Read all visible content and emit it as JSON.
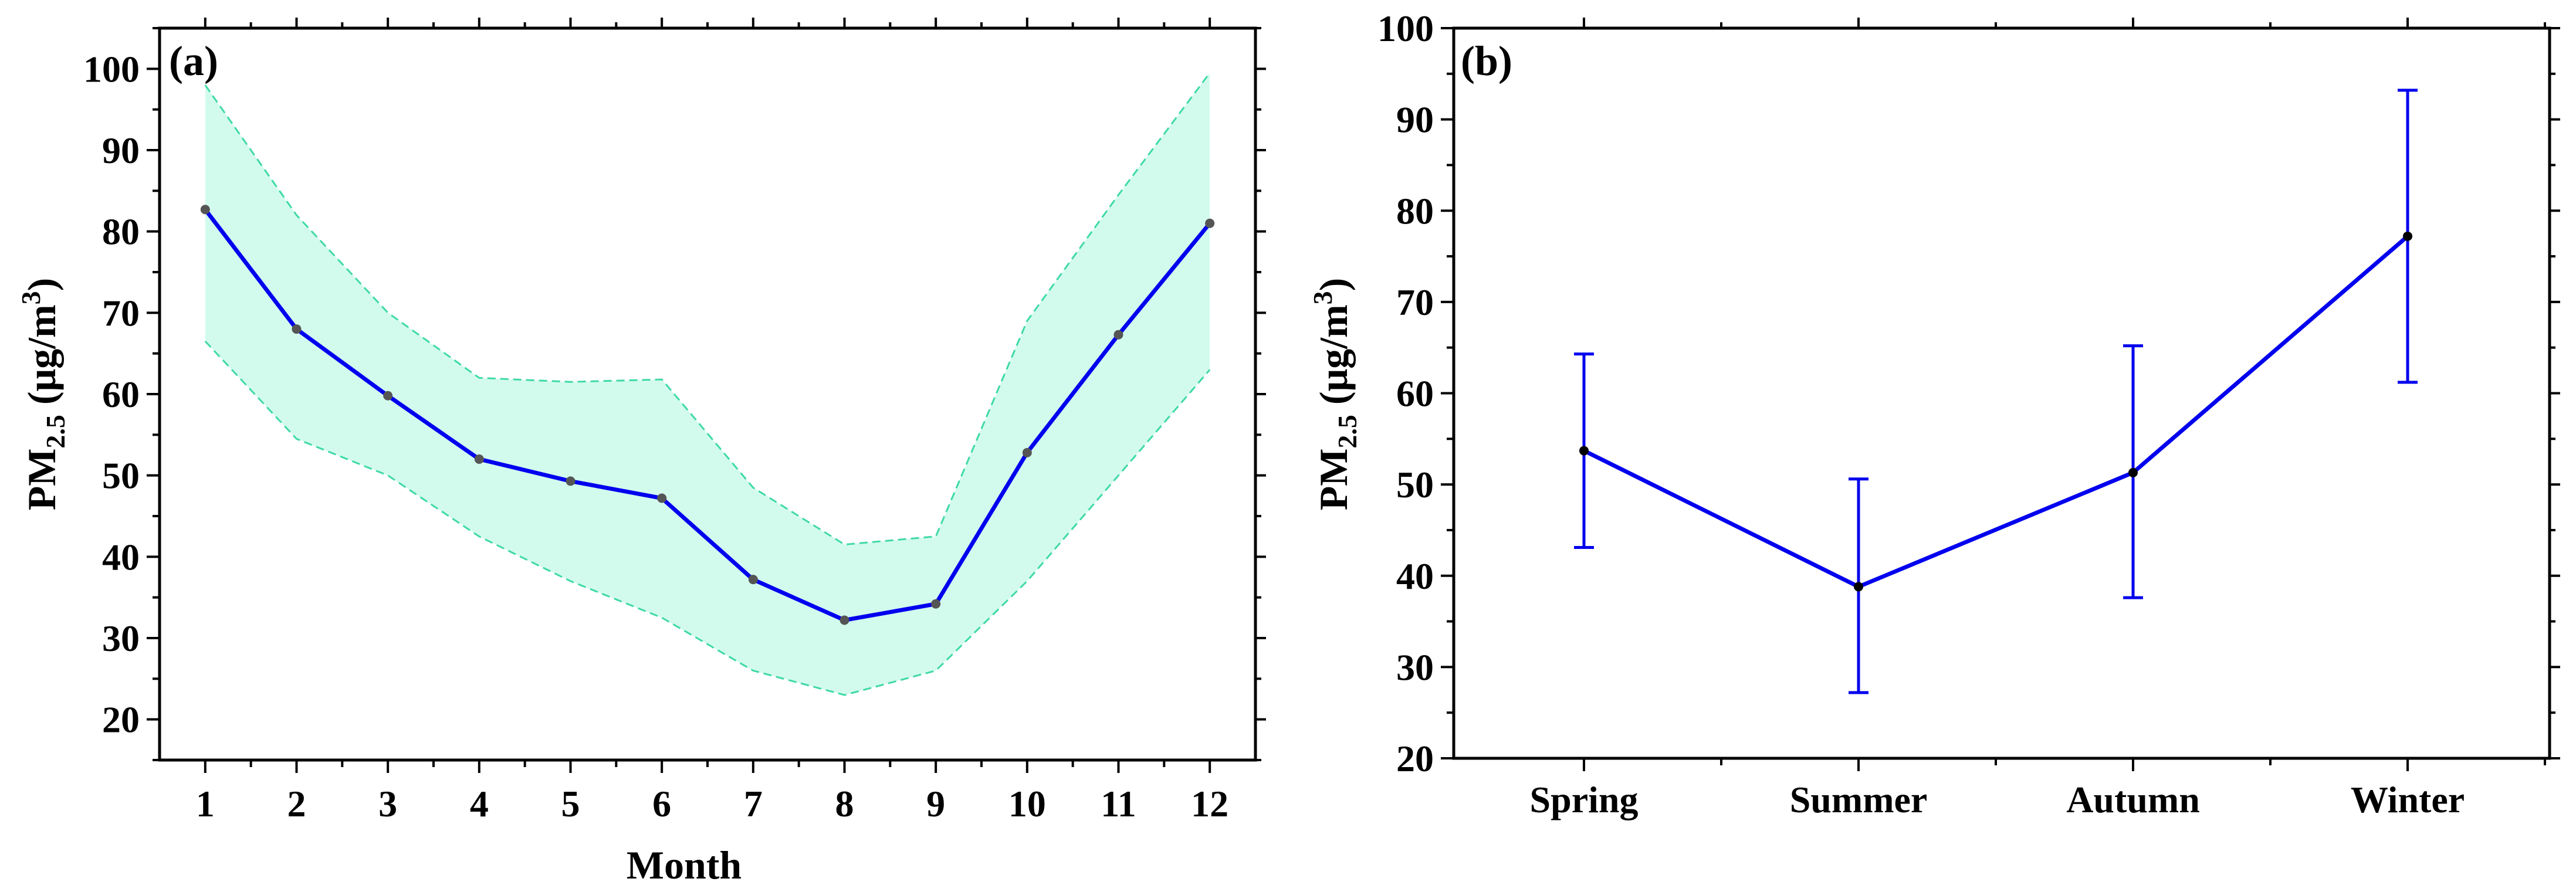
{
  "colors": {
    "line": "#0000ee",
    "band_fill": "#d2fbee",
    "band_edge": "#3fd9a8",
    "marker": "#555555"
  },
  "chart_data": [
    {
      "panel": "(a)",
      "type": "line",
      "title": "",
      "xlabel": "Month",
      "ylabel_main": "PM",
      "ylabel_sub": "2.5",
      "ylabel_unit": " (μg/m",
      "ylabel_sup": "3",
      "ylabel_close": ")",
      "x": [
        1,
        2,
        3,
        4,
        5,
        6,
        7,
        8,
        9,
        10,
        11,
        12
      ],
      "xticks": [
        "1",
        "2",
        "3",
        "4",
        "5",
        "6",
        "7",
        "8",
        "9",
        "10",
        "11",
        "12"
      ],
      "xlim": [
        0.5,
        12.5
      ],
      "ylim": [
        15,
        105
      ],
      "yticks": [
        "20",
        "30",
        "40",
        "50",
        "60",
        "70",
        "80",
        "90",
        "100"
      ],
      "series": [
        {
          "name": "mean",
          "values": [
            82.7,
            68.0,
            59.8,
            52.0,
            49.3,
            47.2,
            37.2,
            32.2,
            34.2,
            52.8,
            67.3,
            81.0
          ]
        },
        {
          "name": "upper",
          "values": [
            98.0,
            82.0,
            70.0,
            62.0,
            61.5,
            61.8,
            48.5,
            41.5,
            42.5,
            69.0,
            84.5,
            99.5
          ]
        },
        {
          "name": "lower",
          "values": [
            66.5,
            54.5,
            50.0,
            42.5,
            37.0,
            32.5,
            26.0,
            23.0,
            26.0,
            37.0,
            50.0,
            63.0
          ]
        }
      ]
    },
    {
      "panel": "(b)",
      "type": "line",
      "title": "",
      "xlabel": "",
      "ylabel_main": "PM",
      "ylabel_sub": "2.5",
      "ylabel_unit": " (μg/m",
      "ylabel_sup": "3",
      "ylabel_close": ")",
      "categories": [
        "Spring",
        "Summer",
        "Autumn",
        "Winter"
      ],
      "ylim": [
        20,
        100
      ],
      "yticks": [
        "20",
        "30",
        "40",
        "50",
        "60",
        "70",
        "80",
        "90",
        "100"
      ],
      "values": [
        53.7,
        38.8,
        51.3,
        77.2
      ],
      "error_low": [
        43.1,
        27.2,
        37.6,
        61.2
      ],
      "error_high": [
        64.3,
        50.6,
        65.2,
        93.2
      ]
    }
  ]
}
